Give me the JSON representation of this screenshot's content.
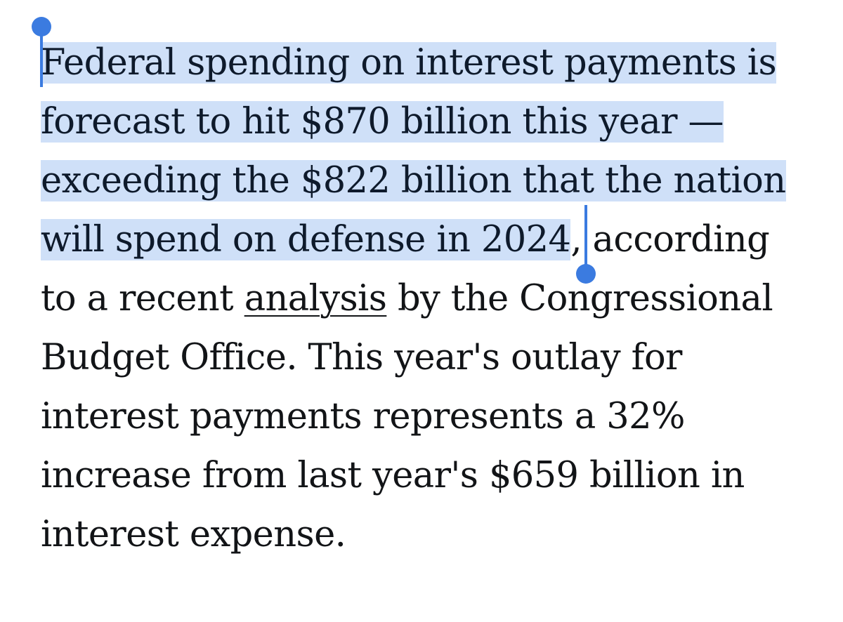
{
  "paragraph": {
    "lines": [
      "Federal spending on interest payments is",
      "forecast to hit $870 billion this year —",
      "exceeding the $822 billion that the nation",
      "will spend on defense in 2024"
    ],
    "after_selection": ", according",
    "line5_prefix": "to a recent ",
    "link_text": "analysis",
    "line5_suffix": " by the Congressional",
    "line6": "Budget Office. This year's outlay for",
    "line7": "interest payments represents a 32%",
    "line8": "increase from last year's $659 billion in",
    "line9": "interest expense."
  },
  "selection": {
    "highlight_color": "#cfe0f8",
    "handle_color": "#3b7be0"
  }
}
